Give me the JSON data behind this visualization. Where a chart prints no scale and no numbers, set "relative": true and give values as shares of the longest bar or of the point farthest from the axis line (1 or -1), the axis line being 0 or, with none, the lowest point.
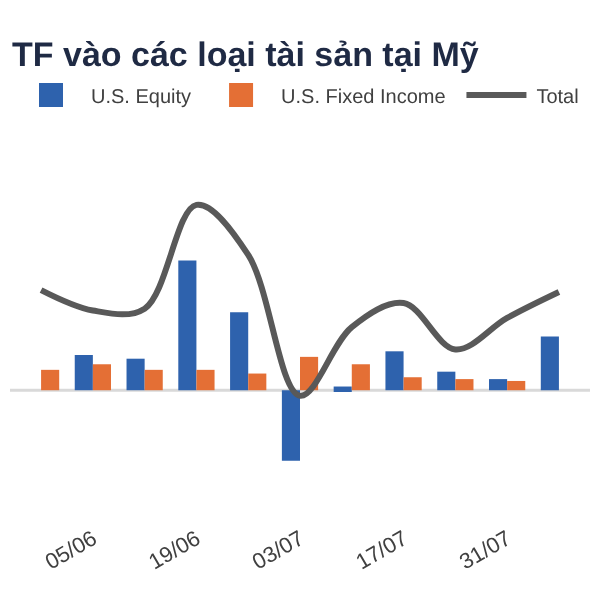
{
  "chart_data": {
    "type": "bar",
    "title": "TF vào các loại tài sản tại Mỹ",
    "relative": true,
    "legend": "top",
    "categories": [
      null,
      "05/06",
      null,
      "19/06",
      null,
      "03/07",
      null,
      "17/07",
      null,
      "31/07",
      null
    ],
    "series": [
      {
        "name": "U.S. Equity",
        "color": "#2e62ad",
        "values": [
          null,
          0.19,
          0.17,
          0.7,
          0.42,
          -0.38,
          0.02,
          0.21,
          0.1,
          0.06,
          0.29
        ]
      },
      {
        "name": "U.S. Fixed Income",
        "color": "#e46f35",
        "values": [
          0.11,
          0.14,
          0.11,
          0.11,
          0.09,
          0.18,
          0.14,
          0.07,
          0.06,
          0.05,
          null
        ]
      },
      {
        "name": "Total",
        "type": "line",
        "color": "#595959",
        "values": [
          0.54,
          0.43,
          0.44,
          1,
          0.73,
          -0.03,
          0.34,
          0.47,
          0.22,
          0.39,
          0.53
        ]
      }
    ]
  }
}
